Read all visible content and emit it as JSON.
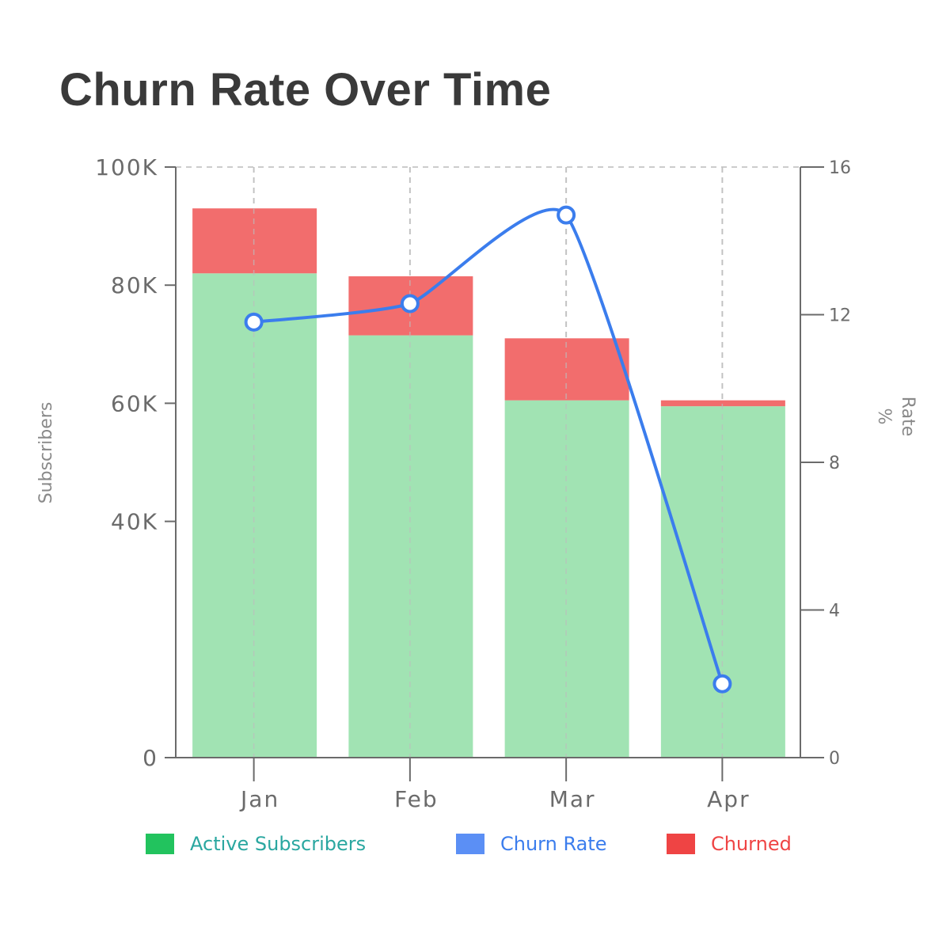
{
  "title": "Churn Rate Over Time",
  "colors": {
    "active": "#a1e3b3",
    "churned": "#f26d6d",
    "line": "#3b7ded",
    "axis": "#6b6b6b",
    "grid": "#cccccc"
  },
  "chart_data": {
    "type": "bar",
    "title": "Churn Rate Over Time",
    "categories": [
      "Jan",
      "Feb",
      "Mar",
      "Apr"
    ],
    "ylabel": "Subscribers",
    "y2label": "Rate",
    "y2label_unit": "%",
    "ylim": [
      0,
      100000
    ],
    "y2lim": [
      0,
      16
    ],
    "y_ticks": [
      {
        "value": 0,
        "label": "0"
      },
      {
        "value": 40000,
        "label": "40K"
      },
      {
        "value": 60000,
        "label": "60K"
      },
      {
        "value": 80000,
        "label": "80K"
      },
      {
        "value": 100000,
        "label": "100K"
      }
    ],
    "y2_ticks": [
      {
        "value": 0,
        "label": "0"
      },
      {
        "value": 4,
        "label": "4"
      },
      {
        "value": 8,
        "label": "8"
      },
      {
        "value": 12,
        "label": "12"
      },
      {
        "value": 16,
        "label": "16"
      }
    ],
    "series": [
      {
        "name": "Active Subscribers",
        "kind": "bar",
        "stack": "subs",
        "axis": "left",
        "color": "#a1e3b3",
        "values": [
          82000,
          71500,
          60500,
          59500
        ]
      },
      {
        "name": "Churned",
        "kind": "bar",
        "stack": "subs",
        "axis": "left",
        "color": "#f26d6d",
        "values": [
          11000,
          10000,
          10500,
          1000
        ]
      },
      {
        "name": "Churn Rate",
        "kind": "line",
        "axis": "right",
        "color": "#3b7ded",
        "values": [
          11.8,
          12.3,
          14.7,
          2.0
        ]
      }
    ],
    "grid": true,
    "legend_position": "bottom"
  },
  "legend": [
    {
      "label": "Active Subscribers",
      "swatch": "#22c35e",
      "text_color": "#2aa7a0"
    },
    {
      "label": "Churn Rate",
      "swatch": "#5b8ff5",
      "text_color": "#3b7ded"
    },
    {
      "label": "Churned",
      "swatch": "#ef4444",
      "text_color": "#ef4444"
    }
  ]
}
